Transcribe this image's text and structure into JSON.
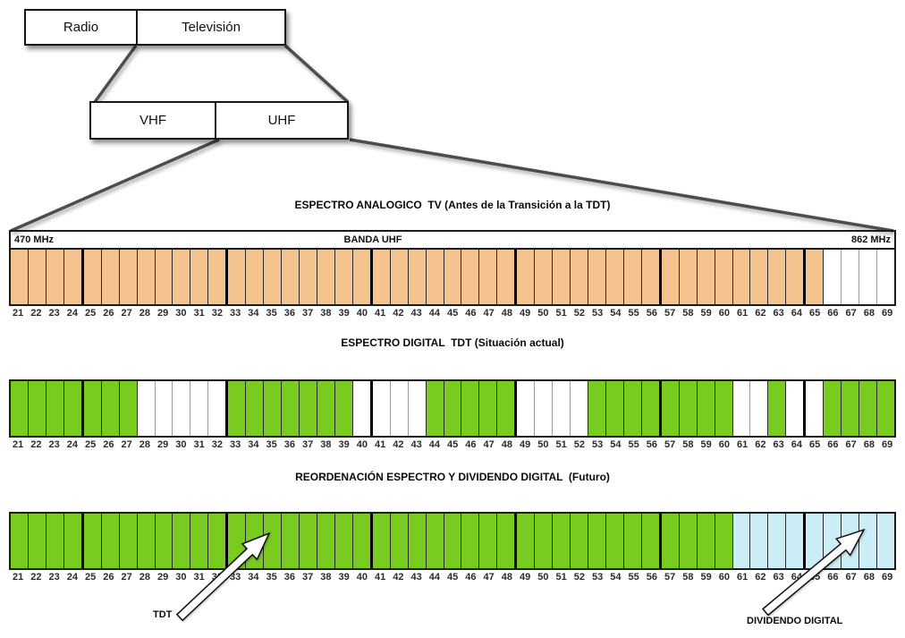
{
  "tree": {
    "top_box": {
      "cells": [
        {
          "label": "Radio"
        },
        {
          "label": "Televisión"
        }
      ]
    },
    "bottom_box": {
      "cells": [
        {
          "label": "VHF"
        },
        {
          "label": "UHF"
        }
      ]
    }
  },
  "band": {
    "first_channel": 21,
    "last_channel": 69,
    "group_borders_after": [
      24,
      32,
      40,
      48,
      56,
      64
    ]
  },
  "colors": {
    "analog": "#F5C48E",
    "digital": "#79CB20",
    "dividend": "#CBEDF6",
    "empty": "#FFFFFF",
    "connector": "#4d4d4d"
  },
  "strips": [
    {
      "name": "espectro-analogico",
      "title": "ESPECTRO ANALOGICO  TV (Antes de la Transición a la TDT)",
      "band_labels": {
        "left": "470 MHz",
        "center": "BANDA UHF",
        "right": "862 MHz"
      },
      "segments": [
        {
          "from": 21,
          "to": 65,
          "color": "analog"
        },
        {
          "from": 66,
          "to": 69,
          "color": "empty"
        }
      ]
    },
    {
      "name": "espectro-digital-tdt",
      "title": "ESPECTRO DIGITAL  TDT (Situación actual)",
      "segments": [
        {
          "from": 21,
          "to": 27,
          "color": "digital"
        },
        {
          "from": 28,
          "to": 32,
          "color": "empty"
        },
        {
          "from": 33,
          "to": 39,
          "color": "digital"
        },
        {
          "from": 40,
          "to": 43,
          "color": "empty"
        },
        {
          "from": 44,
          "to": 48,
          "color": "digital"
        },
        {
          "from": 49,
          "to": 52,
          "color": "empty"
        },
        {
          "from": 53,
          "to": 60,
          "color": "digital"
        },
        {
          "from": 61,
          "to": 62,
          "color": "empty"
        },
        {
          "from": 63,
          "to": 63,
          "color": "digital"
        },
        {
          "from": 64,
          "to": 65,
          "color": "empty"
        },
        {
          "from": 66,
          "to": 69,
          "color": "digital"
        }
      ]
    },
    {
      "name": "reordenacion-futuro",
      "title": "REORDENACIÓN ESPECTRO Y DIVIDENDO DIGITAL  (Futuro)",
      "segments": [
        {
          "from": 21,
          "to": 60,
          "color": "digital"
        },
        {
          "from": 61,
          "to": 69,
          "color": "dividend"
        }
      ],
      "annotations": [
        {
          "label": "TDT",
          "tip_channel": 33
        },
        {
          "label": "DIVIDENDO DIGITAL",
          "tip_channel": 68
        }
      ]
    }
  ]
}
